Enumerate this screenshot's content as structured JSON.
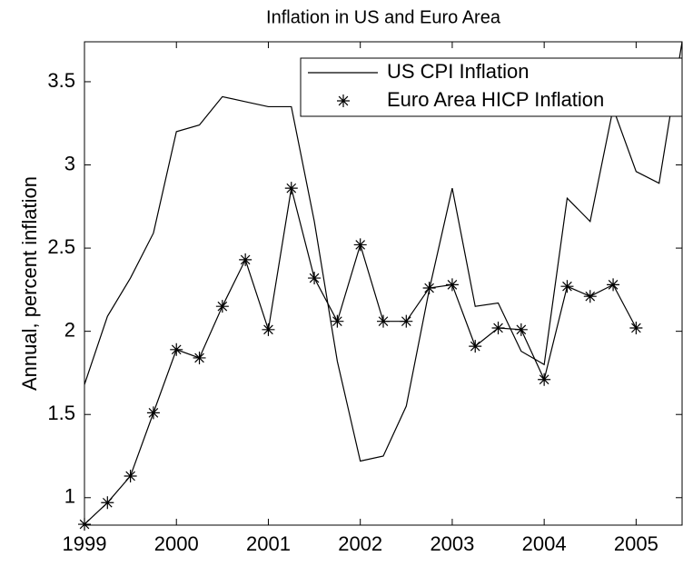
{
  "chart_data": {
    "type": "line",
    "title": "Inflation in US and Euro Area",
    "y_label": "Annual, percent inflation",
    "x": [
      1999,
      1999.25,
      1999.5,
      1999.75,
      2000,
      2000.25,
      2000.5,
      2000.75,
      2001,
      2001.25,
      2001.5,
      2001.75,
      2002,
      2002.25,
      2002.5,
      2002.75,
      2003,
      2003.25,
      2003.5,
      2003.75,
      2004,
      2004.25,
      2004.5,
      2004.75,
      2005,
      2005.25,
      2005.5
    ],
    "series": [
      {
        "name": "US CPI Inflation",
        "color": "#000000",
        "marker": "none",
        "values": [
          1.68,
          2.09,
          2.32,
          2.59,
          3.2,
          3.24,
          3.41,
          3.38,
          3.35,
          3.35,
          2.66,
          1.82,
          1.22,
          1.25,
          1.55,
          2.25,
          2.86,
          2.15,
          2.17,
          1.88,
          1.8,
          2.8,
          2.66,
          3.34,
          2.96,
          2.89,
          3.74
        ]
      },
      {
        "name": "Euro Area HICP Inflation",
        "color": "#000000",
        "marker": "asterisk",
        "values": [
          0.84,
          0.97,
          1.13,
          1.51,
          1.89,
          1.84,
          2.15,
          2.43,
          2.01,
          2.86,
          2.32,
          2.06,
          2.52,
          2.06,
          2.06,
          2.26,
          2.28,
          1.91,
          2.02,
          2.01,
          1.71,
          2.27,
          2.21,
          2.28,
          2.02,
          null,
          null
        ]
      }
    ],
    "xlim": [
      1999,
      2005.5
    ],
    "xticks": [
      1999,
      2000,
      2001,
      2002,
      2003,
      2004,
      2005
    ],
    "ylim": [
      0.835,
      3.74
    ],
    "yticks": [
      1,
      1.5,
      2,
      2.5,
      3,
      3.5
    ],
    "grid": false,
    "legend": "upper right"
  }
}
